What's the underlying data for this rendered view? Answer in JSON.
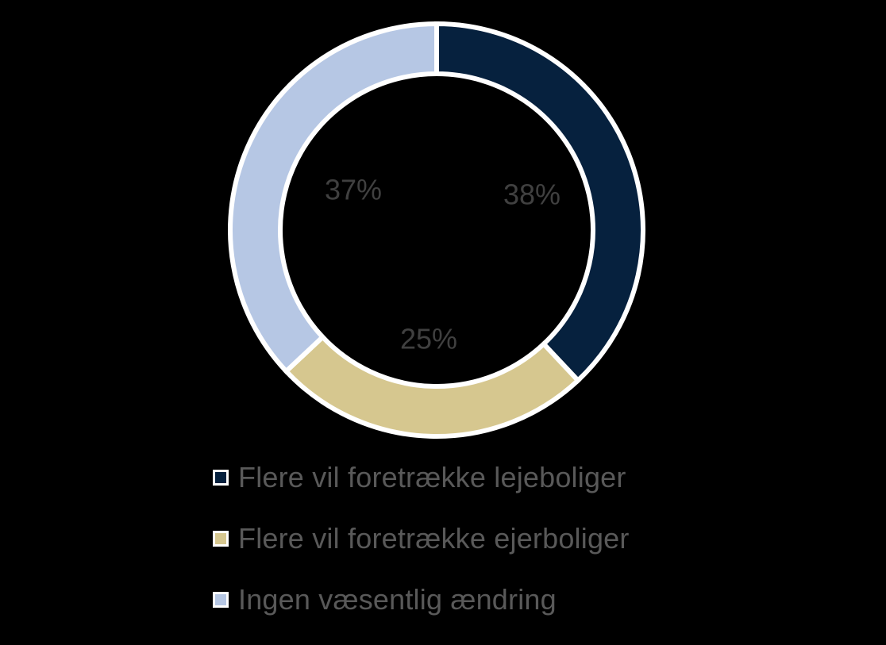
{
  "chart_data": {
    "type": "pie",
    "variant": "donut",
    "categories": [
      "Flere vil foretrække lejeboliger",
      "Flere vil foretrække ejerboliger",
      "Ingen væsentlig ændring"
    ],
    "values": [
      38,
      25,
      37
    ],
    "data_labels": [
      "38%",
      "25%",
      "37%"
    ],
    "colors": [
      "#06213e",
      "#d6c78f",
      "#b6c7e4"
    ],
    "segment_border_color": "#ffffff",
    "label_color": "#404040",
    "legend_position": "bottom",
    "start_angle_deg": 0,
    "direction": "clockwise"
  }
}
